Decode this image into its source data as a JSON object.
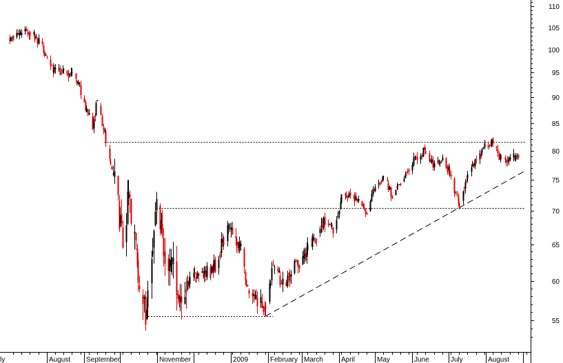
{
  "chart_data": {
    "type": "candlestick",
    "title": "",
    "xlabel": "",
    "ylabel": "",
    "y_scale": "log",
    "ylim": [
      51.5,
      111
    ],
    "y_axis_position": "right",
    "grid": false,
    "legend": "none",
    "colors": {
      "up": "#000000",
      "down": "#e00000",
      "guide": "#000000",
      "background": "#ffffff"
    },
    "y_ticks": [
      55,
      60,
      65,
      70,
      75,
      80,
      85,
      90,
      95,
      100,
      105,
      110
    ],
    "y_tick_labels": [
      "55",
      "60",
      "65",
      "70",
      "75",
      "80",
      "85",
      "90",
      "95",
      "100",
      "105",
      "110"
    ],
    "x_tick_labels": [
      "ly",
      "August",
      "September",
      "November",
      "2009",
      "February",
      "March",
      "April",
      "May",
      "June",
      "July",
      "August"
    ],
    "close_path": [
      [
        "2008-07-01",
        102.5
      ],
      [
        "2008-07-18",
        104.0
      ],
      [
        "2008-07-25",
        102.0
      ],
      [
        "2008-08-05",
        96.0
      ],
      [
        "2008-08-25",
        94.0
      ],
      [
        "2008-09-01",
        89.0
      ],
      [
        "2008-09-08",
        84.0
      ],
      [
        "2008-09-12",
        89.5
      ],
      [
        "2008-09-19",
        82.0
      ],
      [
        "2008-09-29",
        71.0
      ],
      [
        "2008-10-03",
        66.0
      ],
      [
        "2008-10-08",
        72.0
      ],
      [
        "2008-10-14",
        64.0
      ],
      [
        "2008-10-22",
        56.0
      ],
      [
        "2008-10-28",
        65.0
      ],
      [
        "2008-10-31",
        70.5
      ],
      [
        "2008-11-07",
        64.0
      ],
      [
        "2008-11-14",
        62.0
      ],
      [
        "2008-11-21",
        57.0
      ],
      [
        "2008-11-28",
        60.0
      ],
      [
        "2008-12-05",
        60.5
      ],
      [
        "2008-12-12",
        61.0
      ],
      [
        "2008-12-19",
        62.0
      ],
      [
        "2008-12-29",
        67.5
      ],
      [
        "2009-01-05",
        66.0
      ],
      [
        "2009-01-09",
        64.0
      ],
      [
        "2009-01-16",
        58.0
      ],
      [
        "2009-01-23",
        57.5
      ],
      [
        "2009-01-30",
        56.5
      ],
      [
        "2009-02-05",
        62.0
      ],
      [
        "2009-02-13",
        59.5
      ],
      [
        "2009-02-20",
        61.0
      ],
      [
        "2009-02-27",
        62.5
      ],
      [
        "2009-03-06",
        64.0
      ],
      [
        "2009-03-13",
        66.0
      ],
      [
        "2009-03-20",
        69.0
      ],
      [
        "2009-03-27",
        67.0
      ],
      [
        "2009-04-03",
        72.0
      ],
      [
        "2009-04-10",
        73.0
      ],
      [
        "2009-04-17",
        71.5
      ],
      [
        "2009-04-24",
        70.0
      ],
      [
        "2009-05-01",
        74.0
      ],
      [
        "2009-05-08",
        75.5
      ],
      [
        "2009-05-15",
        72.5
      ],
      [
        "2009-05-22",
        74.5
      ],
      [
        "2009-05-29",
        77.0
      ],
      [
        "2009-06-05",
        79.0
      ],
      [
        "2009-06-12",
        80.0
      ],
      [
        "2009-06-19",
        77.0
      ],
      [
        "2009-06-26",
        79.0
      ],
      [
        "2009-07-03",
        75.5
      ],
      [
        "2009-07-10",
        71.0
      ],
      [
        "2009-07-17",
        76.0
      ],
      [
        "2009-07-24",
        78.5
      ],
      [
        "2009-07-31",
        80.5
      ],
      [
        "2009-08-07",
        81.5
      ],
      [
        "2009-08-14",
        78.0
      ],
      [
        "2009-08-21",
        78.5
      ],
      [
        "2009-08-28",
        79.0
      ]
    ],
    "annotations": {
      "resistance_line": {
        "from": "2008-09-18",
        "to": "2009-09-03",
        "value": 81.5,
        "style": "dotted"
      },
      "intermediate_line": {
        "from": "2008-10-31",
        "to": "2009-09-03",
        "value": 70.5,
        "style": "dotted"
      },
      "support_line": {
        "from": "2008-10-22",
        "to": "2009-02-05",
        "value": 55.5,
        "style": "dotted"
      },
      "trendline": {
        "from": [
          "2009-01-30",
          55.5
        ],
        "to": [
          "2009-09-03",
          76.5
        ],
        "style": "dashed"
      }
    }
  }
}
